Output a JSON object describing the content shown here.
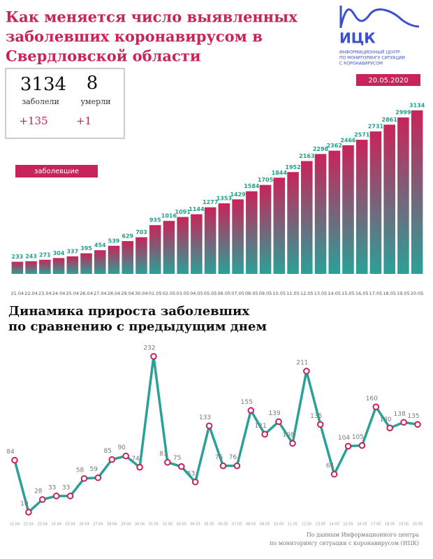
{
  "logo": {
    "name": "ИЦК",
    "caption": [
      "ИНФОРМАЦИОННЫЙ ЦЕНТР",
      "ПО МОНИТОРИНГУ СИТУАЦИИ",
      "С КОРОНАВИРУСОМ"
    ]
  },
  "date": "20.05.2020",
  "stats": {
    "cases": 3134,
    "cases_label": "заболели",
    "cases_delta": "+135",
    "deaths": 8,
    "deaths_label": "умерли",
    "deaths_delta": "+1"
  },
  "chart_data": [
    {
      "type": "bar",
      "title": [
        "Как меняется число выявленных",
        "заболевших коронавирусом в",
        "Свердловской области"
      ],
      "categories": [
        "21.04",
        "22.04",
        "23.04",
        "24.04",
        "25.04",
        "26.04",
        "27.04",
        "28.04",
        "29.04",
        "30.04",
        "01.05",
        "02.05",
        "03.05",
        "04.05",
        "05.05",
        "06.05",
        "07.05",
        "08.05",
        "09.05",
        "10.05",
        "11.05",
        "12.05",
        "13.05",
        "14.05",
        "15.05",
        "16.05",
        "17.05",
        "18.05",
        "19.05",
        "20.05"
      ],
      "series": [
        {
          "name": "заболевшие",
          "color": "#c8245a",
          "values": [
            233,
            243,
            271,
            304,
            337,
            395,
            454,
            539,
            629,
            703,
            935,
            1016,
            1091,
            1144,
            1277,
            1353,
            1429,
            1584,
            1705,
            1844,
            1952,
            2163,
            2298,
            2362,
            2466,
            2571,
            2731,
            2861,
            2999,
            3134
          ]
        }
      ],
      "label_color": "#1f9e8c",
      "gradient_color": "#2aa198"
    },
    {
      "type": "line",
      "title": [
        "Динамика прироста заболевших",
        "по сравнению с предыдущим днем"
      ],
      "categories": [
        "21.04",
        "22.04",
        "23.04",
        "24.04",
        "25.04",
        "26.04",
        "27.04",
        "28.04",
        "29.04",
        "30.04",
        "01.05",
        "02.05",
        "03.05",
        "04.05",
        "05.05",
        "06.05",
        "07.05",
        "08.05",
        "09.05",
        "10.05",
        "11.05",
        "12.05",
        "13.05",
        "14.05",
        "15.05",
        "16.05",
        "17.05",
        "18.05",
        "19.05",
        "20.05"
      ],
      "series": [
        {
          "color": "#2aa198",
          "marker_color": "#c8245a",
          "values": [
            84,
            10,
            28,
            33,
            33,
            58,
            59,
            85,
            90,
            74,
            232,
            81,
            75,
            53,
            133,
            76,
            76,
            155,
            121,
            139,
            108,
            211,
            135,
            64,
            104,
            105,
            160,
            130,
            138,
            135
          ]
        }
      ],
      "source": [
        "По данным Информационного центра",
        "по мониторингу ситуации с коронавирусом (ИЦК)"
      ]
    }
  ]
}
